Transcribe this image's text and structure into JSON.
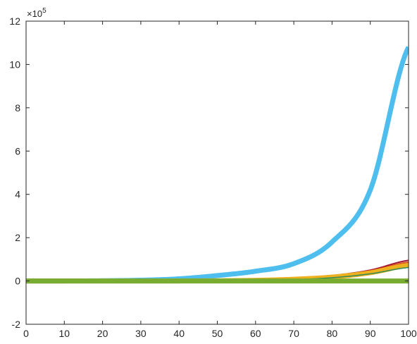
{
  "chart_data": {
    "type": "line",
    "title": "",
    "xlabel": "",
    "ylabel": "",
    "xlim": [
      0,
      100
    ],
    "ylim": [
      -2,
      12
    ],
    "y_scale_multiplier": {
      "base": "10",
      "exponent": "5",
      "prefix": "×"
    },
    "xticks": [
      0,
      10,
      20,
      30,
      40,
      50,
      60,
      70,
      80,
      90,
      100
    ],
    "yticks": [
      -2,
      0,
      2,
      4,
      6,
      8,
      10,
      12
    ],
    "grid": false,
    "legend": "none",
    "x": [
      0,
      10,
      20,
      30,
      40,
      50,
      60,
      70,
      80,
      90,
      100
    ],
    "series": [
      {
        "color": "#4DBEEE",
        "width": 7,
        "values": [
          0.0,
          0.0,
          0.01,
          0.035,
          0.1,
          0.25,
          0.45,
          0.8,
          1.8,
          4.2,
          10.8
        ]
      },
      {
        "color": "#A2142F",
        "width": 2,
        "values": [
          0.0,
          0.0,
          0.0,
          0.0,
          0.0,
          0.02,
          0.05,
          0.12,
          0.25,
          0.5,
          0.95
        ]
      },
      {
        "color": "#D95319",
        "width": 3,
        "values": [
          0.0,
          0.0,
          0.0,
          0.0,
          0.0,
          0.015,
          0.04,
          0.1,
          0.22,
          0.45,
          0.85
        ]
      },
      {
        "color": "#EDB120",
        "width": 7,
        "values": [
          0.0,
          0.0,
          0.0,
          0.0,
          0.0,
          0.01,
          0.03,
          0.08,
          0.18,
          0.38,
          0.72
        ]
      },
      {
        "color": "#2E8B57",
        "width": 1.5,
        "values": [
          0.0,
          0.0,
          0.0,
          0.0,
          0.0,
          0.005,
          0.02,
          0.06,
          0.15,
          0.33,
          0.62
        ]
      },
      {
        "color": "#77AC30",
        "width": 7,
        "values": [
          0.0,
          0.0,
          0.0,
          0.0,
          0.0,
          0.0,
          0.0,
          0.0,
          0.0,
          0.0,
          0.0
        ]
      }
    ]
  }
}
